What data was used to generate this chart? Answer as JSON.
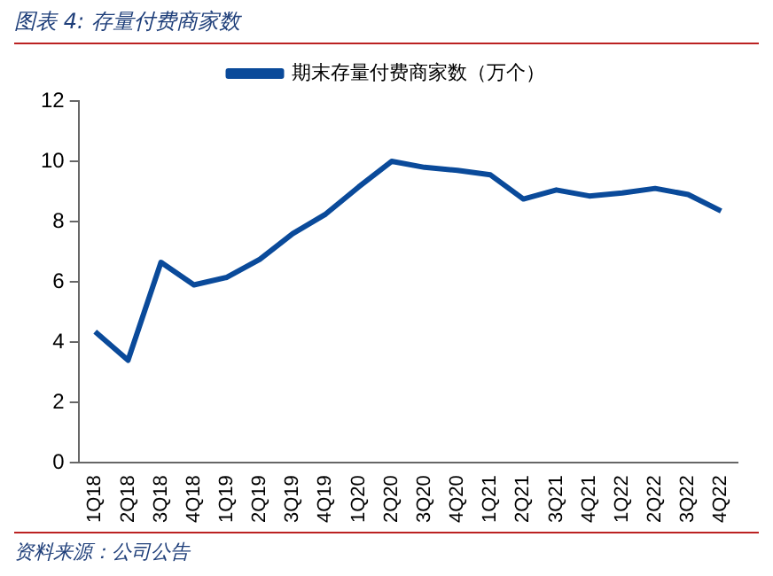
{
  "chart_data": {
    "type": "line",
    "title": "图表 4: 存量付费商家数",
    "categories": [
      "1Q18",
      "2Q18",
      "3Q18",
      "4Q18",
      "1Q19",
      "2Q19",
      "3Q19",
      "4Q19",
      "1Q20",
      "2Q20",
      "3Q20",
      "4Q20",
      "1Q21",
      "2Q21",
      "3Q21",
      "4Q21",
      "1Q22",
      "2Q22",
      "3Q22",
      "4Q22"
    ],
    "series": [
      {
        "name": "期末存量付费商家数（万个）",
        "color": "#0a4a9a",
        "values": [
          4.35,
          3.4,
          6.65,
          5.9,
          6.15,
          6.75,
          7.6,
          8.25,
          9.15,
          10.0,
          9.8,
          9.7,
          9.55,
          8.75,
          9.05,
          8.85,
          8.95,
          9.1,
          8.9,
          8.35
        ]
      }
    ],
    "ylim": [
      0,
      12
    ],
    "yticks": [
      0,
      2,
      4,
      6,
      8,
      10,
      12
    ],
    "grid": false,
    "legend": "top",
    "marker": "none",
    "line_style": "solid",
    "annotations": [
      "资料来源：公司公告"
    ]
  }
}
